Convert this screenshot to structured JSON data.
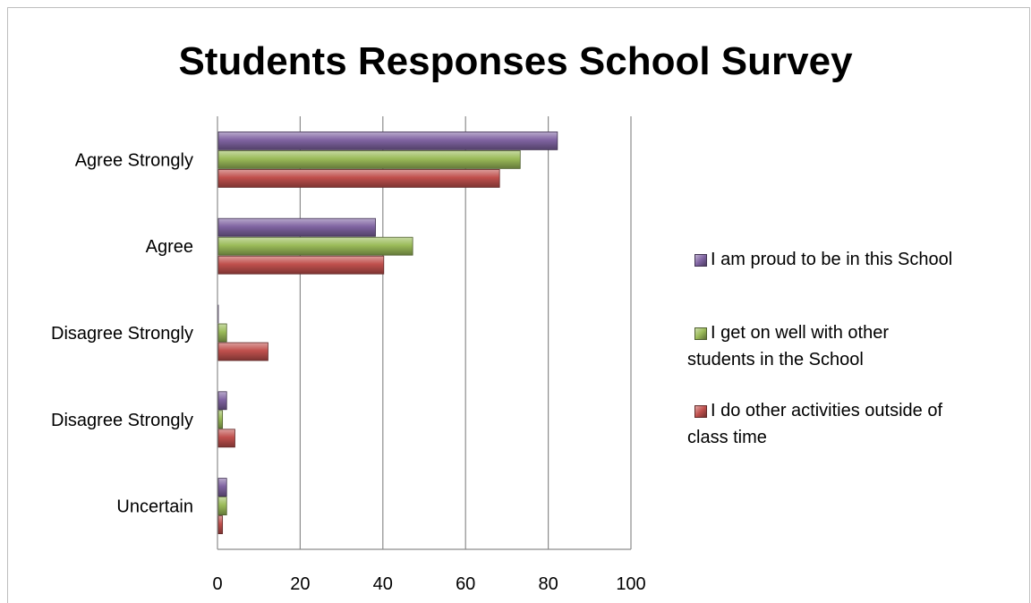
{
  "chart_data": {
    "type": "bar",
    "orientation": "horizontal",
    "title": "Students Responses School Survey",
    "categories": [
      "Agree Strongly",
      "Agree",
      "Disagree Strongly",
      "Disagree Strongly",
      "Uncertain"
    ],
    "series": [
      {
        "name": "I am proud to be in this School",
        "color": "#8064a2",
        "values": [
          82,
          38,
          0,
          2,
          2
        ]
      },
      {
        "name": "I get on well with other students in the School",
        "color": "#9bbb59",
        "values": [
          73,
          47,
          2,
          1,
          2
        ]
      },
      {
        "name": "I do other activities outside of class time",
        "color": "#c0504d",
        "values": [
          68,
          40,
          12,
          4,
          1
        ]
      }
    ],
    "xlim": [
      0,
      100
    ],
    "xticks": [
      0,
      20,
      40,
      60,
      80,
      100
    ],
    "grid": true,
    "legend_position": "right"
  }
}
